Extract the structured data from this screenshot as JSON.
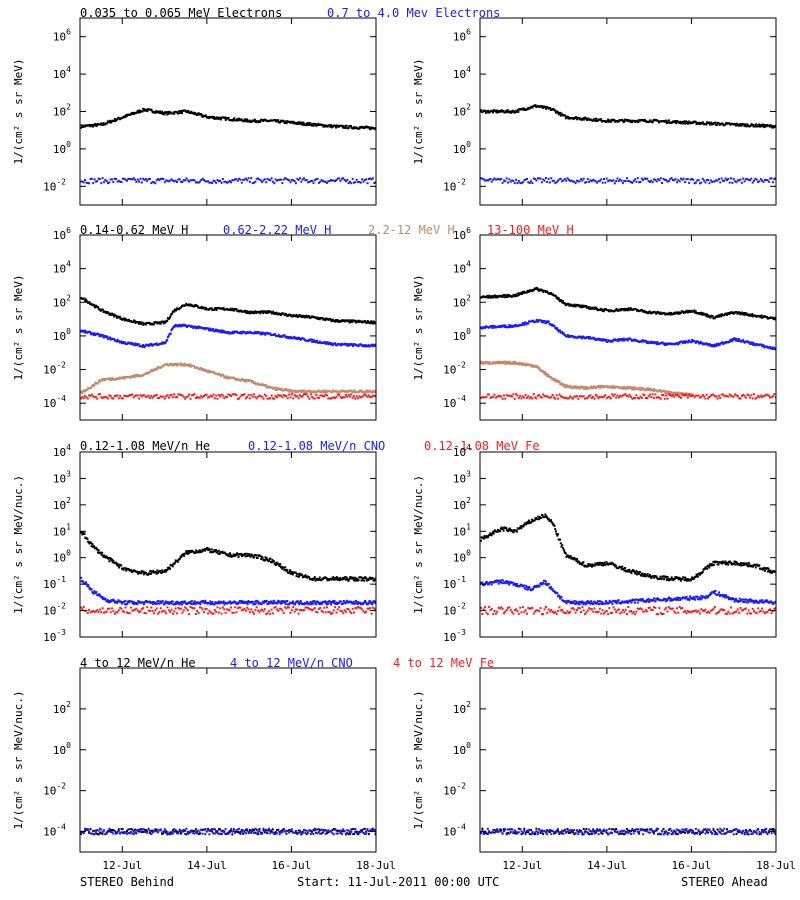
{
  "footer": {
    "left": "STEREO Behind",
    "center": "Start: 11-Jul-2011 00:00 UTC",
    "right": "STEREO Ahead"
  },
  "colors": {
    "black": "#000000",
    "blue": "#1a1aff",
    "tan": "#c48a6e",
    "red": "#ff1a1a"
  },
  "x_axis": {
    "range_days": [
      "11-Jul-2011",
      "18-Jul-2011"
    ],
    "ticks": [
      {
        "day": 1,
        "label": "12-Jul"
      },
      {
        "day": 3,
        "label": "14-Jul"
      },
      {
        "day": 5,
        "label": "16-Jul"
      },
      {
        "day": 7,
        "label": "18-Jul"
      }
    ]
  },
  "rows": [
    {
      "legend": [
        {
          "text": "0.035 to 0.065 MeV Electrons",
          "color": "#000000"
        },
        {
          "text": "0.7 to 4.0 Mev Electrons",
          "color": "#1a1aff"
        }
      ]
    },
    {
      "legend": [
        {
          "text": "0.14-0.62 MeV H",
          "color": "#000000"
        },
        {
          "text": "0.62-2.22 MeV H",
          "color": "#1a1aff"
        },
        {
          "text": "2.2-12 MeV H",
          "color": "#c48a6e"
        },
        {
          "text": "13-100 MeV H",
          "color": "#ff1a1a"
        }
      ]
    },
    {
      "legend": [
        {
          "text": "0.12-1.08 MeV/n He",
          "color": "#000000"
        },
        {
          "text": "0.12-1.08 MeV/n CNO",
          "color": "#1a1aff"
        },
        {
          "text": "0.12-1.08 MeV Fe",
          "color": "#ff1a1a"
        }
      ]
    },
    {
      "legend": [
        {
          "text": "4 to 12 MeV/n He",
          "color": "#000000"
        },
        {
          "text": "4 to 12 MeV/n CNO",
          "color": "#1a1aff"
        },
        {
          "text": "4 to 12 MeV Fe",
          "color": "#ff1a1a"
        }
      ]
    }
  ],
  "chart_data": [
    {
      "type": "scatter",
      "panel": "row1-behind",
      "ylabel": "1/(cm² s sr MeV)",
      "y_scale": "log",
      "ylim_exp": [
        -3,
        7
      ],
      "yticks": [
        "10^-2",
        "10^0",
        "10^2",
        "10^4",
        "10^6"
      ],
      "series": [
        {
          "name": "0.035 to 0.065 MeV Electrons",
          "color": "#000000",
          "x": [
            0,
            0.5,
            1,
            1.5,
            2,
            2.5,
            3,
            3.5,
            4,
            4.5,
            5,
            5.5,
            6,
            6.5,
            7
          ],
          "y_exp": [
            1.2,
            1.3,
            1.7,
            2.1,
            1.9,
            2.0,
            1.7,
            1.6,
            1.5,
            1.5,
            1.4,
            1.3,
            1.2,
            1.15,
            1.1
          ]
        },
        {
          "name": "0.7 to 4.0 Mev Electrons",
          "color": "#1a1aff",
          "x": [
            0,
            7
          ],
          "y_exp": [
            -1.7,
            -1.7
          ]
        }
      ]
    },
    {
      "type": "scatter",
      "panel": "row1-ahead",
      "ylabel": "1/(cm² s sr MeV)",
      "y_scale": "log",
      "ylim_exp": [
        -3,
        7
      ],
      "yticks": [
        "10^-2",
        "10^0",
        "10^2",
        "10^4",
        "10^6"
      ],
      "series": [
        {
          "color": "#000000",
          "x": [
            0,
            0.8,
            1.3,
            1.7,
            2,
            2.5,
            3,
            4,
            5,
            6,
            7
          ],
          "y_exp": [
            2.0,
            2.0,
            2.3,
            2.1,
            1.7,
            1.6,
            1.5,
            1.5,
            1.4,
            1.3,
            1.2
          ]
        },
        {
          "color": "#1a1aff",
          "x": [
            0,
            7
          ],
          "y_exp": [
            -1.7,
            -1.7
          ]
        }
      ]
    },
    {
      "type": "scatter",
      "panel": "row2-behind",
      "ylabel": "1/(cm² s sr MeV)",
      "y_scale": "log",
      "ylim_exp": [
        -5,
        6
      ],
      "yticks": [
        "10^-4",
        "10^-2",
        "10^0",
        "10^2",
        "10^4",
        "10^6"
      ],
      "series": [
        {
          "name": "0.14-0.62 MeV H",
          "color": "#000000",
          "x": [
            0,
            0.5,
            1,
            1.5,
            2,
            2.2,
            2.5,
            3,
            3.5,
            4,
            4.5,
            5,
            5.5,
            6,
            7
          ],
          "y_exp": [
            2.3,
            1.5,
            1.0,
            0.7,
            0.8,
            1.5,
            1.9,
            1.6,
            1.6,
            1.4,
            1.4,
            1.2,
            1.1,
            0.9,
            0.8
          ]
        },
        {
          "name": "0.62-2.22 MeV H",
          "color": "#1a1aff",
          "x": [
            0,
            0.5,
            1,
            1.5,
            2,
            2.2,
            2.5,
            3,
            3.5,
            4,
            4.5,
            5,
            5.5,
            6,
            7
          ],
          "y_exp": [
            0.3,
            0.0,
            -0.4,
            -0.6,
            -0.4,
            0.6,
            0.6,
            0.4,
            0.2,
            0.2,
            0.1,
            -0.1,
            -0.3,
            -0.5,
            -0.6
          ]
        },
        {
          "name": "2.2-12 MeV H",
          "color": "#c48a6e",
          "x": [
            0,
            0.5,
            1,
            1.5,
            2,
            2.5,
            3,
            3.5,
            4,
            4.5,
            5,
            5.5,
            6,
            7
          ],
          "y_exp": [
            -3.4,
            -2.6,
            -2.5,
            -2.3,
            -1.7,
            -1.7,
            -2.1,
            -2.5,
            -2.7,
            -3.1,
            -3.3,
            -3.3,
            -3.3,
            -3.3
          ]
        },
        {
          "name": "13-100 MeV H",
          "color": "#ff1a1a",
          "x": [
            0,
            7
          ],
          "y_exp": [
            -3.6,
            -3.6
          ]
        }
      ]
    },
    {
      "type": "scatter",
      "panel": "row2-ahead",
      "ylabel": "1/(cm² s sr MeV)",
      "y_scale": "log",
      "ylim_exp": [
        -5,
        6
      ],
      "yticks": [
        "10^-4",
        "10^-2",
        "10^0",
        "10^2",
        "10^4",
        "10^6"
      ],
      "series": [
        {
          "color": "#000000",
          "x": [
            0,
            0.8,
            1.3,
            1.6,
            2,
            2.5,
            3,
            3.5,
            4,
            4.5,
            5,
            5.5,
            6,
            6.5,
            7
          ],
          "y_exp": [
            2.3,
            2.4,
            2.8,
            2.6,
            1.9,
            1.7,
            1.5,
            1.6,
            1.4,
            1.3,
            1.5,
            1.1,
            1.4,
            1.2,
            1.0
          ]
        },
        {
          "color": "#1a1aff",
          "x": [
            0,
            0.8,
            1.3,
            1.6,
            2,
            2.5,
            3,
            3.5,
            4,
            4.5,
            5,
            5.5,
            6,
            6.5,
            7
          ],
          "y_exp": [
            0.5,
            0.6,
            0.9,
            0.8,
            0.0,
            -0.1,
            -0.3,
            -0.2,
            -0.4,
            -0.5,
            -0.3,
            -0.6,
            -0.2,
            -0.5,
            -0.8
          ]
        },
        {
          "color": "#c48a6e",
          "x": [
            0,
            0.8,
            1.3,
            1.6,
            2,
            2.5,
            3,
            3.5,
            4,
            4.5,
            5
          ],
          "y_exp": [
            -1.6,
            -1.6,
            -1.8,
            -2.4,
            -3.0,
            -3.1,
            -3.0,
            -3.1,
            -3.2,
            -3.4,
            -3.5
          ]
        },
        {
          "color": "#ff1a1a",
          "x": [
            0,
            7
          ],
          "y_exp": [
            -3.6,
            -3.6
          ]
        }
      ]
    },
    {
      "type": "scatter",
      "panel": "row3-behind",
      "ylabel": "1/(cm² s sr MeV/nuc.)",
      "y_scale": "log",
      "ylim_exp": [
        -3,
        4
      ],
      "yticks": [
        "10^-3",
        "10^-2",
        "10^-1",
        "10^0",
        "10^1",
        "10^2",
        "10^3",
        "10^4"
      ],
      "series": [
        {
          "name": "0.12-1.08 MeV/n He",
          "color": "#000000",
          "x": [
            0,
            0.3,
            0.6,
            1,
            1.5,
            2,
            2.5,
            3,
            3.5,
            4,
            4.5,
            5,
            5.5,
            6,
            7
          ],
          "y_exp": [
            1.0,
            0.4,
            0.0,
            -0.4,
            -0.6,
            -0.5,
            0.2,
            0.3,
            0.1,
            0.1,
            -0.1,
            -0.6,
            -0.8,
            -0.8,
            -0.8
          ]
        },
        {
          "name": "0.12-1.08 MeV/n CNO",
          "color": "#1a1aff",
          "x": [
            0,
            0.3,
            0.6,
            1,
            7
          ],
          "y_exp": [
            -0.8,
            -1.3,
            -1.6,
            -1.7,
            -1.7
          ]
        },
        {
          "name": "0.12-1.08 MeV Fe",
          "color": "#ff1a1a",
          "x": [
            0,
            7
          ],
          "y_exp": [
            -2.0,
            -2.0
          ]
        }
      ]
    },
    {
      "type": "scatter",
      "panel": "row3-ahead",
      "ylabel": "1/(cm² s sr MeV/nuc.)",
      "y_scale": "log",
      "ylim_exp": [
        -3,
        4
      ],
      "yticks": [
        "10^-3",
        "10^-2",
        "10^-1",
        "10^0",
        "10^1",
        "10^2",
        "10^3",
        "10^4"
      ],
      "series": [
        {
          "color": "#000000",
          "x": [
            0,
            0.5,
            0.8,
            1.2,
            1.5,
            1.7,
            2,
            2.5,
            3,
            3.5,
            4,
            4.5,
            5,
            5.5,
            6,
            6.5,
            7
          ],
          "y_exp": [
            0.7,
            1.1,
            1.0,
            1.4,
            1.6,
            1.3,
            0.1,
            -0.3,
            -0.2,
            -0.5,
            -0.7,
            -0.8,
            -0.8,
            -0.2,
            -0.2,
            -0.3,
            -0.6
          ]
        },
        {
          "color": "#1a1aff",
          "x": [
            0,
            0.5,
            0.8,
            1.2,
            1.5,
            1.7,
            2,
            3,
            5.3,
            5.5,
            6,
            7
          ],
          "y_exp": [
            -1.0,
            -0.9,
            -1.0,
            -1.2,
            -0.9,
            -1.2,
            -1.7,
            -1.7,
            -1.5,
            -1.3,
            -1.6,
            -1.7
          ]
        },
        {
          "color": "#ff1a1a",
          "x": [
            0,
            7
          ],
          "y_exp": [
            -2.0,
            -2.0
          ]
        }
      ]
    },
    {
      "type": "scatter",
      "panel": "row4-behind",
      "ylabel": "1/(cm² s sr MeV/nuc.)",
      "y_scale": "log",
      "ylim_exp": [
        -5,
        4
      ],
      "yticks": [
        "10^-4",
        "10^-2",
        "10^0",
        "10^2"
      ],
      "series": [
        {
          "color": "#000000",
          "x": [
            0,
            7
          ],
          "y_exp": [
            -4.0,
            -4.0
          ]
        },
        {
          "color": "#1a1aff",
          "x": [
            0,
            7
          ],
          "y_exp": [
            -4.0,
            -4.0
          ]
        }
      ]
    },
    {
      "type": "scatter",
      "panel": "row4-ahead",
      "ylabel": "1/(cm² s sr MeV/nuc.)",
      "y_scale": "log",
      "ylim_exp": [
        -5,
        4
      ],
      "yticks": [
        "10^-4",
        "10^-2",
        "10^0",
        "10^2"
      ],
      "series": [
        {
          "color": "#000000",
          "x": [
            0,
            7
          ],
          "y_exp": [
            -4.0,
            -4.0
          ]
        },
        {
          "color": "#1a1aff",
          "x": [
            0,
            7
          ],
          "y_exp": [
            -4.0,
            -4.0
          ]
        }
      ]
    }
  ]
}
